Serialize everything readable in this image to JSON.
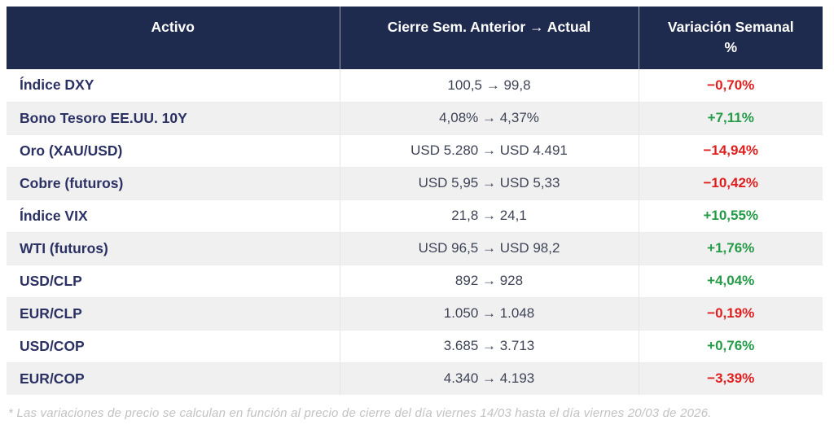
{
  "header": {
    "col_asset": "Activo",
    "col_close": "Cierre Sem. Anterior → Actual",
    "col_variation": "Variación Semanal\n%"
  },
  "rows": [
    {
      "asset": "Índice DXY",
      "close": "100,5 → 99,8",
      "variation": "−0,70%",
      "trend": "down"
    },
    {
      "asset": "Bono Tesoro EE.UU. 10Y",
      "close": "4,08% → 4,37%",
      "variation": "+7,11%",
      "trend": "up"
    },
    {
      "asset": "Oro (XAU/USD)",
      "close": "USD 5.280 → USD 4.491",
      "variation": "−14,94%",
      "trend": "down"
    },
    {
      "asset": "Cobre (futuros)",
      "close": "USD 5,95 → USD 5,33",
      "variation": "−10,42%",
      "trend": "down"
    },
    {
      "asset": "Índice VIX",
      "close": "21,8 → 24,1",
      "variation": "+10,55%",
      "trend": "up"
    },
    {
      "asset": "WTI (futuros)",
      "close": "USD 96,5 → USD 98,2",
      "variation": "+1,76%",
      "trend": "up"
    },
    {
      "asset": "USD/CLP",
      "close": "892 → 928",
      "variation": "+4,04%",
      "trend": "up"
    },
    {
      "asset": "EUR/CLP",
      "close": "1.050 → 1.048",
      "variation": "−0,19%",
      "trend": "down"
    },
    {
      "asset": "USD/COP",
      "close": "3.685 → 3.713",
      "variation": "+0,76%",
      "trend": "up"
    },
    {
      "asset": "EUR/COP",
      "close": "4.340 → 4.193",
      "variation": "−3,39%",
      "trend": "down"
    }
  ],
  "footnote": "* Las variaciones de precio se calculan en función al precio de cierre del día viernes 14/03 hasta el día viernes 20/03 de 2026.",
  "colors": {
    "header_bg": "#1f2b4e",
    "header_text": "#ffffff",
    "asset_text": "#2b3163",
    "value_text": "#3e4456",
    "positive": "#259b48",
    "negative": "#e01e1e",
    "row_alt_bg": "#f0f0f0",
    "footnote_text": "#c2c2c2"
  }
}
